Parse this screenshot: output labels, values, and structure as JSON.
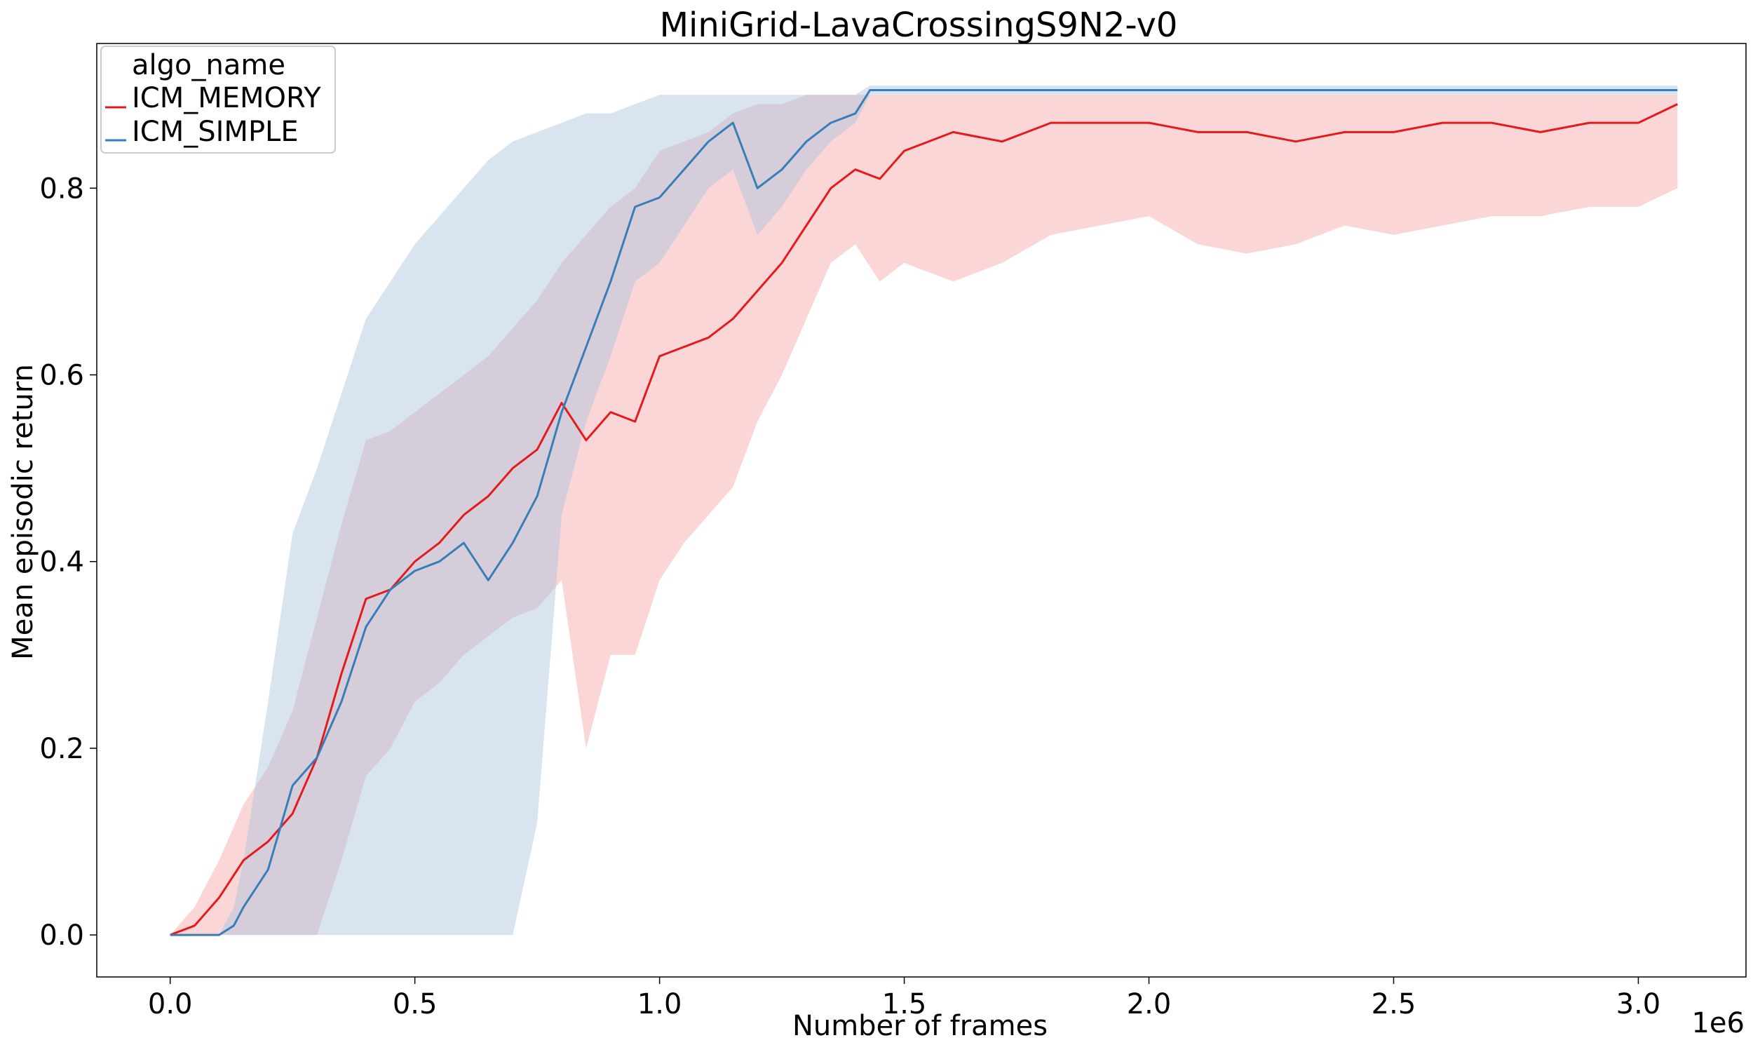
{
  "chart_data": {
    "type": "line",
    "title": "MiniGrid-LavaCrossingS9N2-v0",
    "xlabel": "Number of frames",
    "ylabel": "Mean episodic return",
    "x_offset_text": "1e6",
    "xlim": [
      -0.15,
      3.22
    ],
    "ylim": [
      -0.045,
      0.955
    ],
    "xticks": [
      0.0,
      0.5,
      1.0,
      1.5,
      2.0,
      2.5,
      3.0
    ],
    "xtick_labels": [
      "0.0",
      "0.5",
      "1.0",
      "1.5",
      "2.0",
      "2.5",
      "3.0"
    ],
    "yticks": [
      0.0,
      0.2,
      0.4,
      0.6,
      0.8
    ],
    "ytick_labels": [
      "0.0",
      "0.2",
      "0.4",
      "0.6",
      "0.8"
    ],
    "grid": false,
    "legend": {
      "title": "algo_name",
      "placement": "top-left"
    },
    "series": [
      {
        "name": "ICM_MEMORY",
        "color": "#e41a1c",
        "band_color": "#f4a3a4",
        "x": [
          0.0,
          0.05,
          0.1,
          0.15,
          0.2,
          0.25,
          0.3,
          0.35,
          0.4,
          0.45,
          0.5,
          0.55,
          0.6,
          0.65,
          0.7,
          0.75,
          0.8,
          0.85,
          0.9,
          0.95,
          1.0,
          1.05,
          1.1,
          1.15,
          1.2,
          1.25,
          1.3,
          1.35,
          1.4,
          1.45,
          1.5,
          1.6,
          1.7,
          1.8,
          1.9,
          2.0,
          2.1,
          2.2,
          2.3,
          2.4,
          2.5,
          2.6,
          2.7,
          2.8,
          2.9,
          3.0,
          3.08
        ],
        "mean": [
          0.0,
          0.01,
          0.04,
          0.08,
          0.1,
          0.13,
          0.19,
          0.28,
          0.36,
          0.37,
          0.4,
          0.42,
          0.45,
          0.47,
          0.5,
          0.52,
          0.57,
          0.53,
          0.56,
          0.55,
          0.62,
          0.63,
          0.64,
          0.66,
          0.69,
          0.72,
          0.76,
          0.8,
          0.82,
          0.81,
          0.84,
          0.86,
          0.85,
          0.87,
          0.87,
          0.87,
          0.86,
          0.86,
          0.85,
          0.86,
          0.86,
          0.87,
          0.87,
          0.86,
          0.87,
          0.87,
          0.89
        ],
        "lower": [
          0.0,
          0.0,
          0.0,
          0.0,
          0.0,
          0.0,
          0.0,
          0.08,
          0.17,
          0.2,
          0.25,
          0.27,
          0.3,
          0.32,
          0.34,
          0.35,
          0.38,
          0.2,
          0.3,
          0.3,
          0.38,
          0.42,
          0.45,
          0.48,
          0.55,
          0.6,
          0.66,
          0.72,
          0.74,
          0.7,
          0.72,
          0.7,
          0.72,
          0.75,
          0.76,
          0.77,
          0.74,
          0.73,
          0.74,
          0.76,
          0.75,
          0.76,
          0.77,
          0.77,
          0.78,
          0.78,
          0.8
        ],
        "upper": [
          0.0,
          0.03,
          0.08,
          0.14,
          0.18,
          0.24,
          0.34,
          0.44,
          0.53,
          0.54,
          0.56,
          0.58,
          0.6,
          0.62,
          0.65,
          0.68,
          0.72,
          0.75,
          0.78,
          0.8,
          0.84,
          0.85,
          0.86,
          0.88,
          0.89,
          0.89,
          0.9,
          0.9,
          0.9,
          0.9,
          0.9,
          0.9,
          0.9,
          0.9,
          0.9,
          0.9,
          0.9,
          0.9,
          0.9,
          0.9,
          0.9,
          0.9,
          0.9,
          0.9,
          0.9,
          0.9,
          0.9
        ]
      },
      {
        "name": "ICM_SIMPLE",
        "color": "#377eb8",
        "band_color": "#a8c6e0",
        "x": [
          0.0,
          0.05,
          0.1,
          0.13,
          0.15,
          0.2,
          0.25,
          0.3,
          0.35,
          0.4,
          0.45,
          0.5,
          0.55,
          0.6,
          0.65,
          0.7,
          0.75,
          0.8,
          0.85,
          0.9,
          0.95,
          1.0,
          1.05,
          1.1,
          1.15,
          1.2,
          1.25,
          1.3,
          1.35,
          1.4,
          1.43,
          1.5,
          2.0,
          2.5,
          3.0,
          3.08
        ],
        "mean": [
          0.0,
          0.0,
          0.0,
          0.01,
          0.03,
          0.07,
          0.16,
          0.19,
          0.25,
          0.33,
          0.37,
          0.39,
          0.4,
          0.42,
          0.38,
          0.42,
          0.47,
          0.56,
          0.63,
          0.7,
          0.78,
          0.79,
          0.82,
          0.85,
          0.87,
          0.8,
          0.82,
          0.85,
          0.87,
          0.88,
          0.905,
          0.905,
          0.905,
          0.905,
          0.905,
          0.905
        ],
        "lower": [
          0.0,
          0.0,
          0.0,
          0.0,
          0.0,
          0.0,
          0.0,
          0.0,
          0.0,
          0.0,
          0.0,
          0.0,
          0.0,
          0.0,
          0.0,
          0.0,
          0.12,
          0.45,
          0.55,
          0.62,
          0.7,
          0.72,
          0.76,
          0.8,
          0.82,
          0.75,
          0.78,
          0.82,
          0.85,
          0.87,
          0.9,
          0.9,
          0.9,
          0.9,
          0.9,
          0.9
        ],
        "upper": [
          0.0,
          0.0,
          0.0,
          0.03,
          0.08,
          0.25,
          0.43,
          0.5,
          0.58,
          0.66,
          0.7,
          0.74,
          0.77,
          0.8,
          0.83,
          0.85,
          0.86,
          0.87,
          0.88,
          0.88,
          0.89,
          0.9,
          0.9,
          0.9,
          0.9,
          0.9,
          0.9,
          0.9,
          0.9,
          0.9,
          0.91,
          0.91,
          0.91,
          0.91,
          0.91,
          0.91
        ]
      }
    ]
  }
}
